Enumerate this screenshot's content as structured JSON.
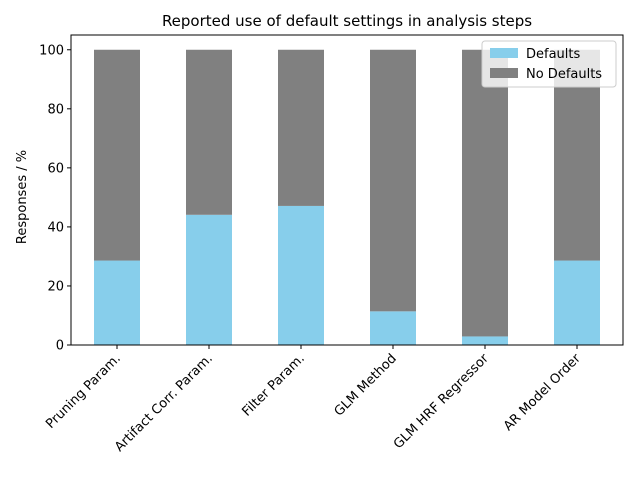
{
  "chart_data": {
    "type": "bar",
    "stacked": true,
    "title": "Reported use of default settings in analysis steps",
    "xlabel": "",
    "ylabel": "Responses / %",
    "ylim": [
      0,
      105
    ],
    "yticks": [
      0,
      20,
      40,
      60,
      80,
      100
    ],
    "categories": [
      "Pruning Param.",
      "Artifact Corr. Param.",
      "Filter Param.",
      "GLM Method",
      "GLM HRF Regressor",
      "AR Model Order"
    ],
    "series": [
      {
        "name": "Defaults",
        "color": "#87ceeb",
        "values": [
          28.6,
          44.1,
          47.1,
          11.4,
          2.9,
          28.6
        ]
      },
      {
        "name": "No Defaults",
        "color": "#808080",
        "values": [
          71.4,
          55.9,
          52.9,
          88.6,
          97.1,
          71.4
        ]
      }
    ],
    "legend": "top-right",
    "grid": false,
    "xtick_rotation": 45
  }
}
